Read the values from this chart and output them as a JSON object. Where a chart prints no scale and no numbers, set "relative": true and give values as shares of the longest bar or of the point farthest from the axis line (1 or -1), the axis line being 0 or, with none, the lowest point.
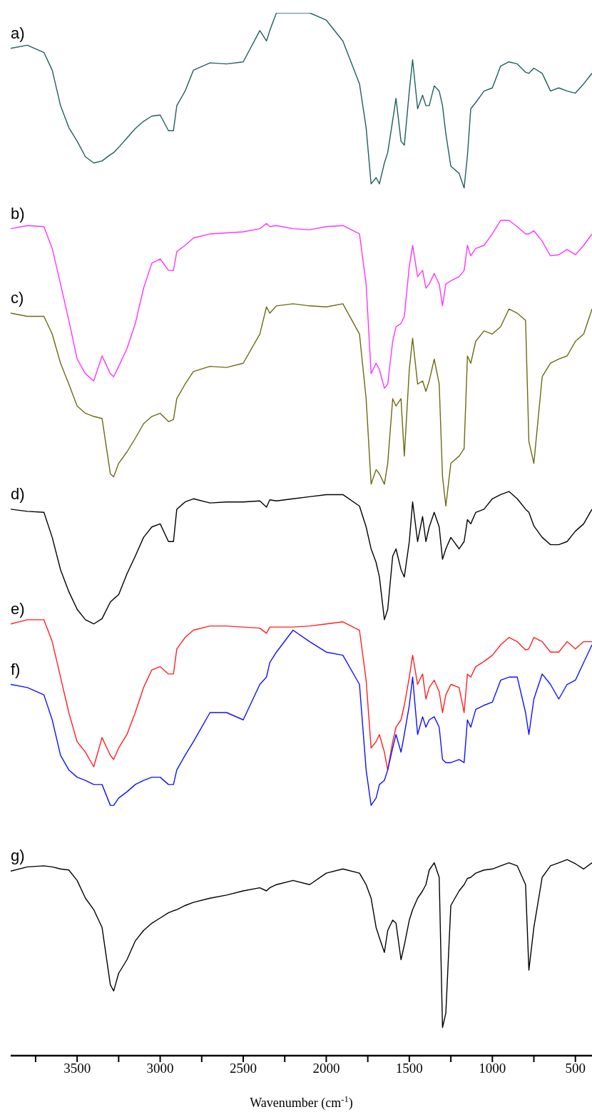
{
  "chart_data": {
    "type": "line",
    "relative": true,
    "xlabel": "Wavenumber (cm$^{-1}$)",
    "xlim": [
      3900,
      400
    ],
    "xticks": [
      {
        "value": 3750,
        "label": null
      },
      3500,
      {
        "value": 3250,
        "label": null
      },
      3000,
      {
        "value": 2750,
        "label": null
      },
      2500,
      {
        "value": 2250,
        "label": null
      },
      2000,
      {
        "value": 1750,
        "label": null
      },
      1500,
      {
        "value": 1250,
        "label": null
      },
      1000,
      {
        "value": 750,
        "label": null
      },
      500
    ],
    "x": [
      3900,
      3800,
      3700,
      3650,
      3600,
      3550,
      3500,
      3450,
      3400,
      3350,
      3300,
      3280,
      3250,
      3200,
      3150,
      3100,
      3050,
      3000,
      2950,
      2920,
      2900,
      2850,
      2800,
      2700,
      2600,
      2500,
      2400,
      2360,
      2340,
      2300,
      2200,
      2100,
      2000,
      1900,
      1800,
      1760,
      1730,
      1700,
      1680,
      1650,
      1630,
      1600,
      1580,
      1550,
      1530,
      1500,
      1480,
      1450,
      1420,
      1400,
      1380,
      1350,
      1320,
      1300,
      1280,
      1250,
      1200,
      1170,
      1150,
      1130,
      1100,
      1050,
      1000,
      950,
      900,
      850,
      800,
      780,
      750,
      700,
      650,
      600,
      550,
      500,
      450,
      400
    ],
    "series": [
      {
        "name": "a)",
        "color": "#1f5f5f",
        "values": [
          0.966,
          0.969,
          0.962,
          0.945,
          0.911,
          0.89,
          0.877,
          0.862,
          0.856,
          0.858,
          0.864,
          0.866,
          0.871,
          0.88,
          0.889,
          0.896,
          0.901,
          0.902,
          0.887,
          0.887,
          0.911,
          0.925,
          0.945,
          0.952,
          0.951,
          0.953,
          0.983,
          0.973,
          0.983,
          1.0,
          1.0,
          1.0,
          0.993,
          0.973,
          0.932,
          0.89,
          0.836,
          0.842,
          0.836,
          0.856,
          0.866,
          0.897,
          0.918,
          0.877,
          0.873,
          0.925,
          0.955,
          0.908,
          0.921,
          0.911,
          0.911,
          0.93,
          0.925,
          0.911,
          0.884,
          0.853,
          0.846,
          0.832,
          0.863,
          0.908,
          0.914,
          0.925,
          0.928,
          0.949,
          0.953,
          0.951,
          0.943,
          0.942,
          0.947,
          0.942,
          0.925,
          0.928,
          0.925,
          0.923,
          0.932,
          0.942
        ]
      },
      {
        "name": "b)",
        "color": "#ff33ff",
        "values": [
          0.793,
          0.796,
          0.795,
          0.774,
          0.74,
          0.705,
          0.668,
          0.654,
          0.647,
          0.671,
          0.654,
          0.651,
          0.661,
          0.678,
          0.702,
          0.736,
          0.76,
          0.764,
          0.753,
          0.753,
          0.771,
          0.777,
          0.784,
          0.788,
          0.789,
          0.79,
          0.793,
          0.798,
          0.795,
          0.796,
          0.793,
          0.792,
          0.795,
          0.796,
          0.788,
          0.74,
          0.654,
          0.664,
          0.658,
          0.64,
          0.644,
          0.685,
          0.699,
          0.702,
          0.709,
          0.757,
          0.777,
          0.747,
          0.753,
          0.736,
          0.74,
          0.75,
          0.74,
          0.719,
          0.74,
          0.743,
          0.747,
          0.753,
          0.777,
          0.767,
          0.774,
          0.777,
          0.788,
          0.801,
          0.801,
          0.795,
          0.788,
          0.788,
          0.791,
          0.781,
          0.767,
          0.768,
          0.773,
          0.768,
          0.777,
          0.788
        ]
      },
      {
        "name": "c)",
        "color": "#6b6b10",
        "values": [
          0.712,
          0.709,
          0.709,
          0.692,
          0.664,
          0.644,
          0.623,
          0.616,
          0.613,
          0.611,
          0.558,
          0.555,
          0.568,
          0.579,
          0.592,
          0.606,
          0.613,
          0.616,
          0.608,
          0.61,
          0.63,
          0.644,
          0.656,
          0.661,
          0.66,
          0.664,
          0.692,
          0.718,
          0.712,
          0.719,
          0.721,
          0.719,
          0.718,
          0.721,
          0.692,
          0.63,
          0.548,
          0.562,
          0.558,
          0.548,
          0.568,
          0.63,
          0.623,
          0.63,
          0.575,
          0.658,
          0.688,
          0.644,
          0.647,
          0.637,
          0.647,
          0.668,
          0.644,
          0.555,
          0.527,
          0.568,
          0.575,
          0.582,
          0.671,
          0.664,
          0.685,
          0.695,
          0.692,
          0.699,
          0.716,
          0.712,
          0.705,
          0.589,
          0.568,
          0.651,
          0.664,
          0.668,
          0.671,
          0.685,
          0.692,
          0.716
        ]
      },
      {
        "name": "d)",
        "color": "#000000",
        "values": [
          0.524,
          0.522,
          0.521,
          0.497,
          0.466,
          0.445,
          0.428,
          0.418,
          0.414,
          0.419,
          0.435,
          0.438,
          0.442,
          0.462,
          0.479,
          0.497,
          0.507,
          0.51,
          0.493,
          0.493,
          0.524,
          0.531,
          0.534,
          0.53,
          0.531,
          0.531,
          0.532,
          0.526,
          0.533,
          0.532,
          0.534,
          0.536,
          0.538,
          0.538,
          0.527,
          0.507,
          0.486,
          0.473,
          0.459,
          0.418,
          0.428,
          0.479,
          0.486,
          0.466,
          0.459,
          0.493,
          0.531,
          0.493,
          0.517,
          0.493,
          0.507,
          0.521,
          0.507,
          0.476,
          0.486,
          0.497,
          0.486,
          0.493,
          0.514,
          0.51,
          0.521,
          0.524,
          0.534,
          0.538,
          0.541,
          0.534,
          0.524,
          0.521,
          0.508,
          0.497,
          0.49,
          0.49,
          0.493,
          0.503,
          0.51,
          0.524
        ]
      },
      {
        "name": "e)",
        "color": "#ff2020",
        "values": [
          0.414,
          0.418,
          0.418,
          0.397,
          0.363,
          0.329,
          0.301,
          0.291,
          0.277,
          0.305,
          0.288,
          0.284,
          0.295,
          0.308,
          0.329,
          0.353,
          0.37,
          0.373,
          0.366,
          0.366,
          0.39,
          0.401,
          0.408,
          0.412,
          0.412,
          0.411,
          0.41,
          0.405,
          0.411,
          0.411,
          0.411,
          0.412,
          0.414,
          0.416,
          0.408,
          0.36,
          0.295,
          0.301,
          0.308,
          0.291,
          0.274,
          0.301,
          0.315,
          0.322,
          0.336,
          0.363,
          0.384,
          0.356,
          0.366,
          0.342,
          0.353,
          0.36,
          0.349,
          0.329,
          0.346,
          0.356,
          0.353,
          0.329,
          0.366,
          0.363,
          0.373,
          0.378,
          0.384,
          0.394,
          0.401,
          0.397,
          0.389,
          0.39,
          0.401,
          0.397,
          0.387,
          0.387,
          0.397,
          0.39,
          0.397,
          0.397
        ]
      },
      {
        "name": "f)",
        "color": "#1010ff",
        "values": [
          0.356,
          0.353,
          0.346,
          0.322,
          0.288,
          0.274,
          0.267,
          0.264,
          0.26,
          0.26,
          0.24,
          0.24,
          0.247,
          0.253,
          0.26,
          0.264,
          0.267,
          0.267,
          0.26,
          0.26,
          0.274,
          0.288,
          0.301,
          0.329,
          0.329,
          0.322,
          0.356,
          0.363,
          0.377,
          0.387,
          0.408,
          0.397,
          0.387,
          0.384,
          0.356,
          0.274,
          0.24,
          0.247,
          0.26,
          0.264,
          0.274,
          0.295,
          0.308,
          0.291,
          0.308,
          0.336,
          0.363,
          0.308,
          0.325,
          0.315,
          0.322,
          0.325,
          0.315,
          0.284,
          0.281,
          0.281,
          0.284,
          0.281,
          0.322,
          0.315,
          0.332,
          0.336,
          0.339,
          0.36,
          0.363,
          0.363,
          0.329,
          0.308,
          0.342,
          0.366,
          0.356,
          0.342,
          0.356,
          0.36,
          0.377,
          0.394
        ]
      },
      {
        "name": "g)",
        "color": "#000000",
        "values": [
          0.177,
          0.181,
          0.182,
          0.181,
          0.179,
          0.178,
          0.168,
          0.151,
          0.14,
          0.123,
          0.068,
          0.062,
          0.079,
          0.092,
          0.11,
          0.12,
          0.127,
          0.132,
          0.137,
          0.139,
          0.14,
          0.144,
          0.147,
          0.151,
          0.154,
          0.158,
          0.161,
          0.158,
          0.161,
          0.164,
          0.168,
          0.164,
          0.175,
          0.179,
          0.175,
          0.164,
          0.151,
          0.123,
          0.113,
          0.099,
          0.12,
          0.13,
          0.127,
          0.092,
          0.106,
          0.13,
          0.14,
          0.151,
          0.158,
          0.164,
          0.178,
          0.185,
          0.171,
          0.027,
          0.041,
          0.144,
          0.158,
          0.164,
          0.17,
          0.171,
          0.175,
          0.178,
          0.179,
          0.182,
          0.185,
          0.182,
          0.164,
          0.082,
          0.123,
          0.171,
          0.182,
          0.185,
          0.188,
          0.184,
          0.179,
          0.185
        ]
      }
    ]
  }
}
